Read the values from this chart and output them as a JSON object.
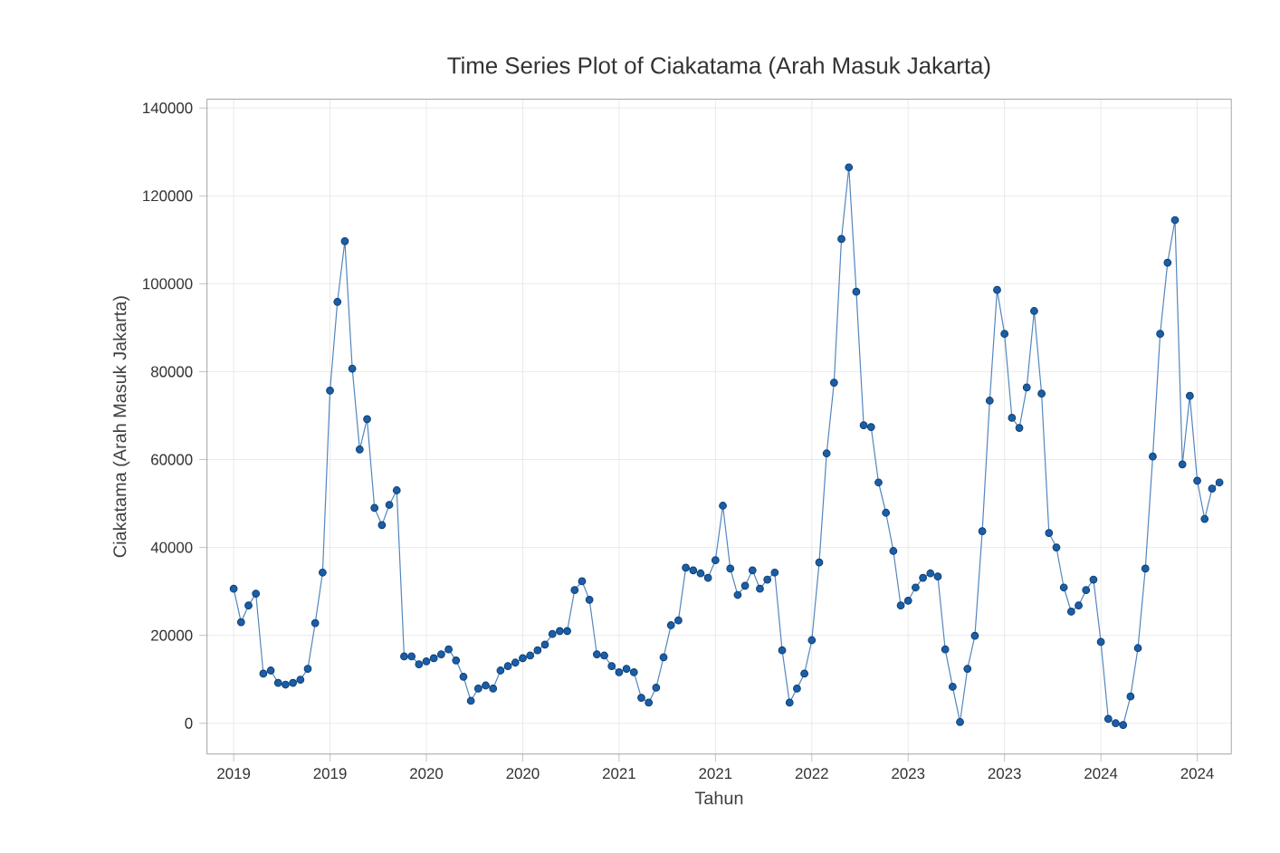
{
  "chart_data": {
    "type": "line",
    "title": "Time Series Plot of Ciakatama (Arah Masuk Jakarta)",
    "xlabel": "Tahun",
    "ylabel": "Ciakatama (Arah Masuk Jakarta)",
    "categories": [
      "2019",
      null,
      null,
      null,
      null,
      null,
      null,
      null,
      null,
      null,
      null,
      null,
      null,
      "2019",
      null,
      null,
      null,
      null,
      null,
      null,
      null,
      null,
      null,
      null,
      null,
      null,
      "2020",
      null,
      null,
      null,
      null,
      null,
      null,
      null,
      null,
      null,
      null,
      null,
      null,
      "2020",
      null,
      null,
      null,
      null,
      null,
      null,
      null,
      null,
      null,
      null,
      null,
      null,
      "2021",
      null,
      null,
      null,
      null,
      null,
      null,
      null,
      null,
      null,
      null,
      null,
      null,
      "2021",
      null,
      null,
      null,
      null,
      null,
      null,
      null,
      null,
      null,
      null,
      null,
      null,
      "2022",
      null,
      null,
      null,
      null,
      null,
      null,
      null,
      null,
      null,
      null,
      null,
      null,
      "2023",
      null,
      null,
      null,
      null,
      null,
      null,
      null,
      null,
      null,
      null,
      null,
      null,
      "2023",
      null,
      null,
      null,
      null,
      null,
      null,
      null,
      null,
      null,
      null,
      null,
      null,
      "2024",
      null,
      null,
      null,
      null,
      null,
      null,
      null,
      null,
      null,
      null,
      null,
      null,
      "2024",
      null,
      null,
      null
    ],
    "series": [
      {
        "color": "#1a5ea8",
        "values": [
          30600,
          23000,
          26800,
          29500,
          11300,
          12000,
          9200,
          8800,
          9200,
          9900,
          12400,
          22800,
          34300,
          75700,
          95900,
          109700,
          80700,
          62300,
          69200,
          49000,
          45100,
          49700,
          53000,
          15200,
          15200,
          13400,
          14100,
          14800,
          15700,
          16800,
          14300,
          10600,
          5100,
          7900,
          8600,
          7900,
          12000,
          13000,
          13800,
          14800,
          15400,
          16600,
          17900,
          20300,
          21000,
          21000,
          30300,
          32300,
          28100,
          15700,
          15400,
          13000,
          11600,
          12400,
          11600,
          5800,
          4700,
          8100,
          15000,
          22300,
          23400,
          35400,
          34800,
          34100,
          33100,
          37100,
          49500,
          35200,
          29200,
          31300,
          34800,
          30600,
          32700,
          34300,
          16600,
          4700,
          7900,
          11300,
          18900,
          36600,
          61400,
          77500,
          110200,
          126500,
          98200,
          67800,
          67400,
          54800,
          47900,
          39200,
          26800,
          27900,
          30900,
          33100,
          34100,
          33400,
          16800,
          8300,
          300,
          12400,
          19900,
          43700,
          73400,
          98600,
          88600,
          69500,
          67200,
          76400,
          93800,
          75000,
          43300,
          40000,
          30900,
          25400,
          26800,
          30300,
          32700,
          18500,
          1000,
          0,
          -400,
          6100,
          17100,
          35200,
          60700,
          88600,
          104800,
          114500,
          58900,
          74500,
          55200,
          46500,
          53400,
          54800
        ]
      }
    ],
    "ylim": [
      -7000,
      142000
    ],
    "yticks": [
      0,
      20000,
      40000,
      60000,
      80000,
      100000,
      120000,
      140000
    ],
    "grid": true,
    "marker": "circle",
    "line_style": "solid"
  }
}
